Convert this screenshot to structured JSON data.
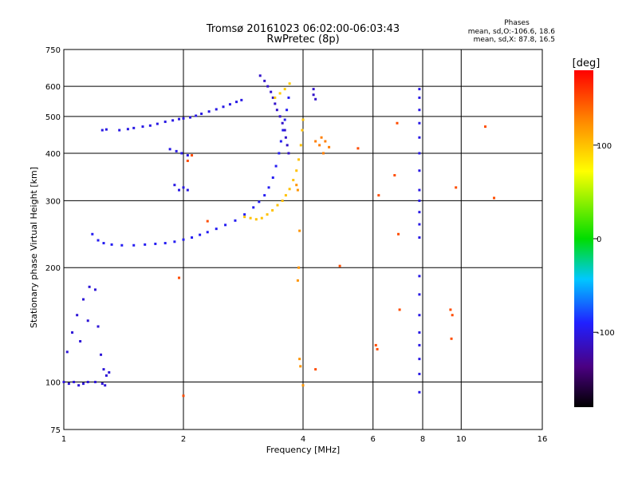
{
  "chart_data": {
    "type": "scatter",
    "title": "Tromsø 20161023 06:02:00-06:03:43",
    "subtitle": "RwPretec (8p)",
    "xlabel": "Frequency [MHz]",
    "ylabel": "Stationary phase Virtual Height [km]",
    "x_scale": "log2",
    "y_scale": "log",
    "xlim": [
      1,
      16
    ],
    "ylim": [
      75,
      750
    ],
    "x_ticks": [
      "1",
      "2",
      "4",
      "6",
      "8",
      "10",
      "16"
    ],
    "y_ticks": [
      "75",
      "100",
      "200",
      "300",
      "400",
      "500",
      "600",
      "750"
    ],
    "grid": true,
    "phase_stats": {
      "title": "Phases",
      "o_line": "mean, sd,O:-106.6, 18.6",
      "x_line": "mean, sd,X: 87.8, 16.5"
    },
    "colorbar": {
      "label": "[deg]",
      "ticks": [
        "100",
        "0",
        "-100"
      ],
      "range": [
        -180,
        180
      ]
    },
    "series": [
      {
        "points": [
          [
            1.25,
            460
          ],
          [
            1.28,
            462
          ],
          [
            1.38,
            460
          ],
          [
            1.45,
            463
          ],
          [
            1.5,
            466
          ],
          [
            1.58,
            470
          ],
          [
            1.65,
            473
          ],
          [
            1.72,
            478
          ],
          [
            1.8,
            484
          ],
          [
            1.88,
            488
          ],
          [
            1.95,
            492
          ],
          [
            2.0,
            494
          ],
          [
            2.08,
            497
          ],
          [
            2.15,
            502
          ],
          [
            2.22,
            508
          ],
          [
            2.32,
            515
          ],
          [
            2.42,
            522
          ],
          [
            2.52,
            530
          ],
          [
            2.62,
            538
          ],
          [
            2.72,
            546
          ],
          [
            2.8,
            552
          ]
        ],
        "phase": -100
      },
      {
        "points": [
          [
            1.18,
            245
          ],
          [
            1.22,
            236
          ],
          [
            1.26,
            232
          ],
          [
            1.32,
            230
          ],
          [
            1.4,
            229
          ],
          [
            1.5,
            229
          ],
          [
            1.6,
            230
          ],
          [
            1.7,
            231
          ],
          [
            1.8,
            232
          ],
          [
            1.9,
            234
          ],
          [
            2.0,
            237
          ],
          [
            2.1,
            240
          ],
          [
            2.2,
            244
          ],
          [
            2.3,
            248
          ],
          [
            2.42,
            253
          ],
          [
            2.55,
            259
          ],
          [
            2.7,
            266
          ],
          [
            2.85,
            276
          ],
          [
            3.0,
            288
          ],
          [
            3.1,
            298
          ],
          [
            3.2,
            310
          ],
          [
            3.28,
            325
          ],
          [
            3.36,
            345
          ],
          [
            3.42,
            370
          ],
          [
            3.48,
            400
          ],
          [
            3.52,
            430
          ],
          [
            3.56,
            460
          ],
          [
            3.6,
            490
          ],
          [
            3.64,
            520
          ],
          [
            3.68,
            560
          ]
        ],
        "phase": -95
      },
      {
        "points": [
          [
            3.12,
            640
          ],
          [
            3.2,
            620
          ],
          [
            3.26,
            600
          ],
          [
            3.32,
            580
          ],
          [
            3.36,
            560
          ],
          [
            3.4,
            540
          ],
          [
            3.44,
            520
          ],
          [
            3.5,
            500
          ],
          [
            3.55,
            480
          ],
          [
            3.6,
            460
          ],
          [
            3.62,
            440
          ],
          [
            3.65,
            420
          ],
          [
            3.68,
            400
          ]
        ],
        "phase": -110
      },
      {
        "points": [
          [
            2.85,
            272
          ],
          [
            2.95,
            270
          ],
          [
            3.05,
            268
          ],
          [
            3.15,
            270
          ],
          [
            3.25,
            276
          ],
          [
            3.35,
            283
          ],
          [
            3.45,
            292
          ],
          [
            3.55,
            300
          ],
          [
            3.62,
            310
          ],
          [
            3.7,
            322
          ],
          [
            3.78,
            340
          ],
          [
            3.85,
            360
          ],
          [
            3.9,
            385
          ],
          [
            3.95,
            420
          ],
          [
            3.98,
            460
          ],
          [
            4.0,
            490
          ]
        ],
        "phase": 100
      },
      {
        "points": [
          [
            3.4,
            560
          ],
          [
            3.5,
            575
          ],
          [
            3.6,
            590
          ],
          [
            3.7,
            610
          ]
        ],
        "phase": 95
      },
      {
        "points": [
          [
            1.0,
            100
          ],
          [
            1.03,
            99
          ],
          [
            1.06,
            100
          ],
          [
            1.09,
            98
          ],
          [
            1.12,
            99
          ],
          [
            1.15,
            100
          ],
          [
            1.2,
            100
          ],
          [
            1.25,
            99
          ],
          [
            1.27,
            98
          ]
        ],
        "phase": -105
      },
      {
        "points": [
          [
            1.02,
            120
          ],
          [
            1.05,
            135
          ],
          [
            1.08,
            150
          ],
          [
            1.12,
            165
          ],
          [
            1.16,
            178
          ],
          [
            1.2,
            175
          ],
          [
            1.15,
            145
          ],
          [
            1.1,
            128
          ],
          [
            1.22,
            140
          ],
          [
            1.24,
            118
          ],
          [
            1.26,
            108
          ],
          [
            1.28,
            104
          ],
          [
            1.3,
            106
          ]
        ],
        "phase": -105
      },
      {
        "points": [
          [
            7.85,
            590
          ],
          [
            7.85,
            560
          ],
          [
            7.85,
            520
          ],
          [
            7.85,
            480
          ],
          [
            7.85,
            440
          ],
          [
            7.85,
            400
          ],
          [
            7.85,
            360
          ],
          [
            7.85,
            320
          ],
          [
            7.85,
            300
          ],
          [
            7.85,
            280
          ],
          [
            7.85,
            260
          ],
          [
            7.85,
            240
          ],
          [
            7.85,
            190
          ],
          [
            7.85,
            170
          ],
          [
            7.85,
            150
          ],
          [
            7.85,
            135
          ],
          [
            7.85,
            125
          ],
          [
            7.85,
            115
          ],
          [
            7.85,
            105
          ],
          [
            7.85,
            94
          ]
        ],
        "phase": -100
      },
      {
        "points": [
          [
            1.85,
            410
          ],
          [
            1.92,
            405
          ],
          [
            1.95,
            320
          ],
          [
            2.0,
            325
          ],
          [
            2.05,
            320
          ],
          [
            1.98,
            400
          ],
          [
            1.9,
            330
          ],
          [
            2.05,
            395
          ]
        ],
        "phase": -100
      },
      {
        "points": [
          [
            4.25,
            590
          ],
          [
            4.25,
            570
          ],
          [
            4.3,
            555
          ]
        ],
        "phase": -110
      },
      {
        "points": [
          [
            4.3,
            430
          ],
          [
            4.4,
            420
          ],
          [
            4.45,
            440
          ],
          [
            4.5,
            400
          ],
          [
            4.55,
            430
          ],
          [
            4.65,
            415
          ]
        ],
        "phase": 130
      },
      {
        "points": [
          [
            3.85,
            330
          ],
          [
            3.88,
            320
          ],
          [
            3.92,
            250
          ],
          [
            3.9,
            200
          ],
          [
            3.88,
            185
          ],
          [
            3.92,
            115
          ],
          [
            3.94,
            110
          ],
          [
            4.0,
            98
          ]
        ],
        "phase": 120
      },
      {
        "points": [
          [
            6.2,
            310
          ],
          [
            6.1,
            125
          ],
          [
            6.15,
            122
          ],
          [
            6.8,
            350
          ],
          [
            6.9,
            480
          ],
          [
            7.0,
            155
          ],
          [
            6.95,
            245
          ],
          [
            4.3,
            108
          ],
          [
            9.4,
            155
          ],
          [
            9.5,
            150
          ],
          [
            9.45,
            130
          ],
          [
            9.7,
            325
          ],
          [
            11.5,
            470
          ],
          [
            12.1,
            305
          ],
          [
            5.5,
            412
          ],
          [
            4.95,
            202
          ],
          [
            1.95,
            188
          ],
          [
            2.0,
            92
          ],
          [
            2.05,
            382
          ],
          [
            2.1,
            395
          ],
          [
            2.3,
            265
          ]
        ],
        "phase": 150
      }
    ]
  }
}
